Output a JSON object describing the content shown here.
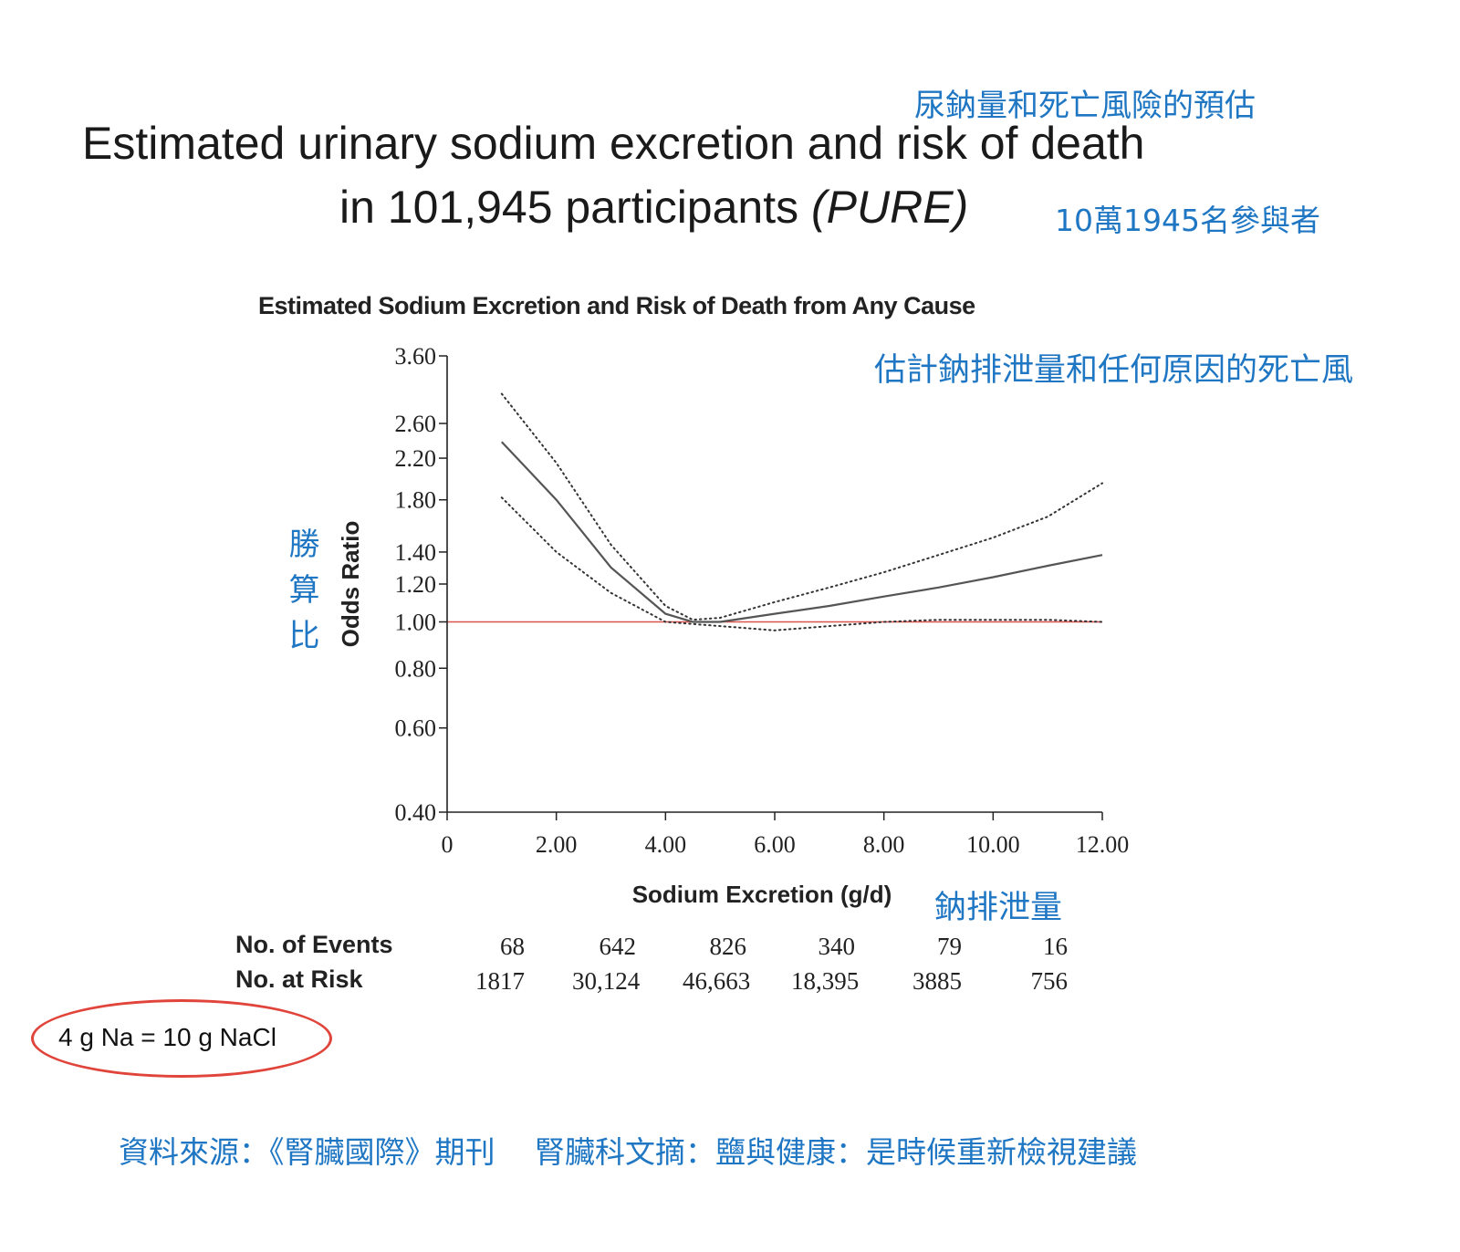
{
  "header": {
    "title_line1": "Estimated urinary sodium excretion and risk of death",
    "title_line2_main": "in 101,945 participants ",
    "title_line2_italic": "(PURE)",
    "zh_title": "尿鈉量和死亡風險的預估",
    "zh_participants": "10萬1945名參與者"
  },
  "chart_zh": {
    "title": "估計鈉排泄量和任何原因的死亡風",
    "y_label": "勝算比",
    "x_label": "鈉排泄量"
  },
  "table": {
    "events_label": "No. of Events",
    "risk_label": "No. at Risk",
    "events": [
      "68",
      "642",
      "826",
      "340",
      "79",
      "16"
    ],
    "at_risk": [
      "1817",
      "30,124",
      "46,663",
      "18,395",
      "3885",
      "756"
    ]
  },
  "note": {
    "text": "4 g Na = 10 g NaCl",
    "oval_color": "#e0443a"
  },
  "footer": {
    "source": "資料來源：《腎臟國際》期刊　 腎臟科文摘：鹽與健康：是時候重新檢視建議"
  },
  "colors": {
    "accent_blue": "#1f77c4",
    "reference_line": "#d9534f",
    "curve": "#555555"
  },
  "chart_data": {
    "type": "line",
    "title": "Estimated Sodium Excretion and Risk of Death from Any Cause",
    "xlabel": "Sodium Excretion (g/d)",
    "ylabel": "Odds Ratio",
    "xlim": [
      0,
      12
    ],
    "ylim": [
      0.4,
      3.6
    ],
    "yscale": "log",
    "x_ticks": [
      0,
      2,
      4,
      6,
      8,
      10,
      12
    ],
    "x_tick_labels": [
      "0",
      "2.00",
      "4.00",
      "6.00",
      "8.00",
      "10.00",
      "12.00"
    ],
    "y_ticks": [
      0.4,
      0.6,
      0.8,
      1.0,
      1.2,
      1.4,
      1.8,
      2.2,
      2.6,
      3.6
    ],
    "y_tick_labels": [
      "0.40",
      "0.60",
      "0.80",
      "1.00",
      "1.20",
      "1.40",
      "1.80",
      "2.20",
      "2.60",
      "3.60"
    ],
    "reference_line": 1.0,
    "series": [
      {
        "name": "Odds ratio",
        "style": "solid",
        "x": [
          1,
          2,
          3,
          4,
          4.5,
          5,
          6,
          7,
          8,
          9,
          10,
          11,
          12
        ],
        "y": [
          2.38,
          1.8,
          1.3,
          1.04,
          1.0,
          1.0,
          1.04,
          1.08,
          1.13,
          1.18,
          1.24,
          1.31,
          1.38
        ]
      },
      {
        "name": "Upper 95% CI",
        "style": "dotted",
        "x": [
          1,
          2,
          3,
          4,
          4.5,
          5,
          6,
          7,
          8,
          9,
          10,
          11,
          12
        ],
        "y": [
          3.0,
          2.15,
          1.45,
          1.08,
          1.01,
          1.02,
          1.1,
          1.18,
          1.27,
          1.38,
          1.5,
          1.66,
          1.95
        ]
      },
      {
        "name": "Lower 95% CI",
        "style": "dotted",
        "x": [
          1,
          2,
          3,
          4,
          4.5,
          5,
          6,
          7,
          8,
          9,
          10,
          11,
          12
        ],
        "y": [
          1.82,
          1.4,
          1.15,
          1.0,
          0.99,
          0.98,
          0.96,
          0.98,
          1.0,
          1.01,
          1.01,
          1.01,
          1.0
        ]
      }
    ]
  }
}
